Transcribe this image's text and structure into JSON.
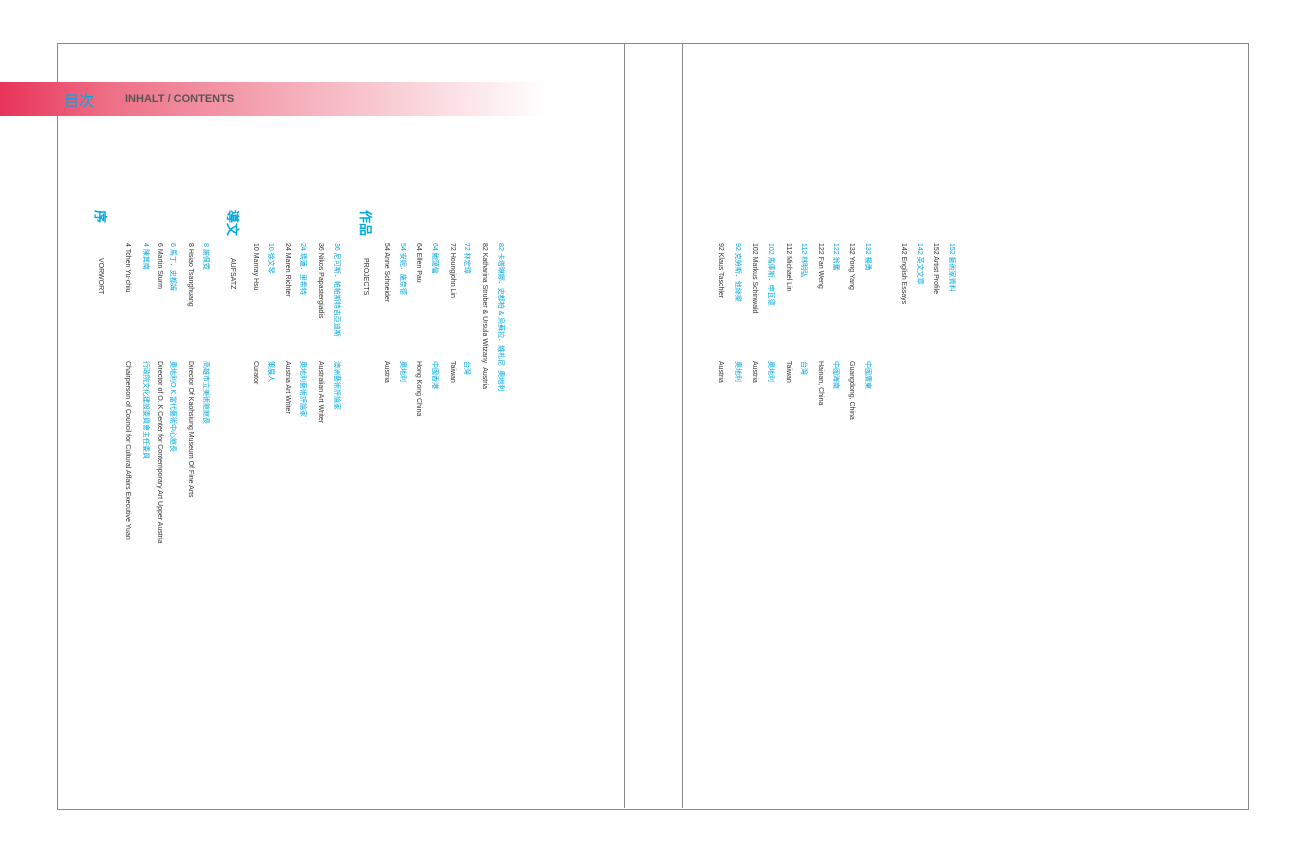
{
  "header": {
    "title_zh": "目次",
    "title_en": "INHALT / CONTENTS"
  },
  "sections": [
    {
      "heading": "序",
      "subheading": "VORWORT",
      "entries": [
        {
          "zh": "4 陳其南",
          "zh_role": "行政院文化建設委員會主任委員",
          "en": "4 Tchen Yu-chiu",
          "en_role": "Chairperson of Council for Cultural Affairs Executive Yuan"
        },
        {
          "zh": "6 馬丁．史都姆",
          "zh_role": "奧地利O.K.當代藝術中心館長",
          "en": "6 Martin Sturm",
          "en_role": "Director of O. K Center for Contemporary Art Upper Austria"
        },
        {
          "zh": "8 謝佩霓",
          "zh_role": "高雄市立美術館館長",
          "en": "8 Hsiao Tsanghuang",
          "en_role": "Director Of Kaohsiung Museum Of Fine Arts"
        }
      ]
    },
    {
      "heading": "導文",
      "subheading": "AUFSATZ",
      "entries": [
        {
          "zh": "10 徐文琴",
          "zh_role": "策展人",
          "en": "10 Manray Hsu",
          "en_role": "Curator"
        },
        {
          "zh": "24 瑪蓮．里希特",
          "zh_role": "奧地利藝術評論家",
          "en": "24 Maren Richter",
          "en_role": "Austria Art Writer"
        },
        {
          "zh": "36 尼可斯．帕帕斯特吉亞迪斯",
          "zh_role": "澳洲藝術評論家",
          "en": "36 Nikos Papastergiadis",
          "en_role": "Australian Art Writer"
        }
      ]
    },
    {
      "heading": "作品",
      "subheading": "PROJECTS",
      "entries": [
        {
          "zh": "54 安妮．施奈德",
          "zh_role": "奧地利",
          "en": "54 Anne Schneider",
          "en_role": "Austria"
        },
        {
          "zh": "64 鮑藹倫",
          "zh_role": "中國香港",
          "en": "64 Ellen Pau",
          "en_role": "Hong Kong China"
        },
        {
          "zh": "72 林宏璋",
          "zh_role": "台灣",
          "en": "72 Houngjohn Lin",
          "en_role": "Taiwan"
        },
        {
          "zh": "82 卡塔琳娜．史都柏 & 烏蘇拉．維札尼",
          "zh_role": "奧地利",
          "en": "82 Katharina Struber & Ursula Witzany",
          "en_role": "Austria"
        }
      ]
    }
  ],
  "right_entries": [
    {
      "zh": "92 克勞斯．他絲樂",
      "zh_role": "奧地利",
      "en": "92 Klaus Taschler",
      "en_role": "Austria"
    },
    {
      "zh": "102 馬庫斯．申瓦德",
      "zh_role": "奧地利",
      "en": "102 Markus Schinwald",
      "en_role": "Austria"
    },
    {
      "zh": "112 林明弘",
      "zh_role": "台灣",
      "en": "112 Michael Lin",
      "en_role": "Taiwan"
    },
    {
      "zh": "122 翁奮",
      "zh_role": "中國海南",
      "en": "122 Fan Weng",
      "en_role": "Hainan, China"
    },
    {
      "zh": "132 楊勇",
      "zh_role": "中國廣東",
      "en": "132 Yong Yang",
      "en_role": "Guangdong, China"
    },
    {
      "zh": "142 英文文章",
      "en": "142 English Essays"
    },
    {
      "zh": "152 藝術家資料",
      "en": "152 Artist Profile"
    }
  ]
}
